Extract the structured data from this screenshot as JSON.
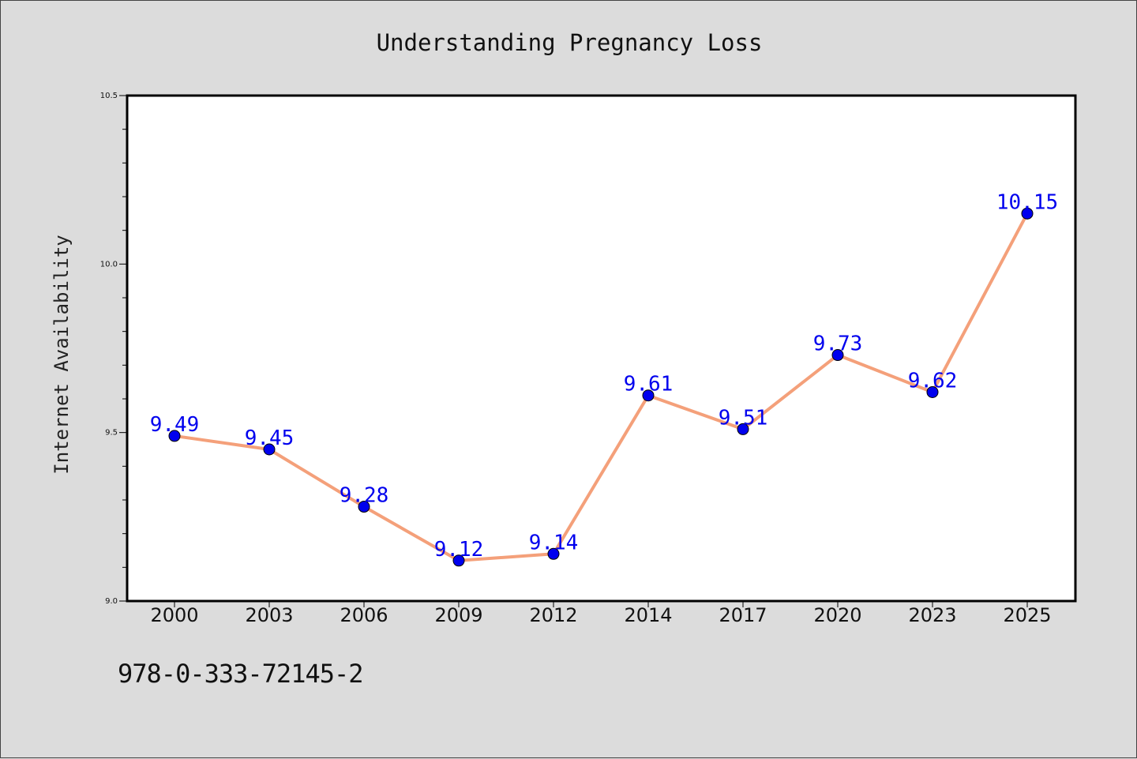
{
  "footer": {
    "code": "978-0-333-72145-2"
  },
  "chart_data": {
    "type": "line",
    "title": "Understanding Pregnancy Loss",
    "xlabel": "",
    "ylabel": "Internet Availability",
    "categories": [
      "2000",
      "2003",
      "2006",
      "2009",
      "2012",
      "2014",
      "2017",
      "2020",
      "2023",
      "2025"
    ],
    "series": [
      {
        "values": [
          9.49,
          9.45,
          9.28,
          9.12,
          9.14,
          9.61,
          9.51,
          9.73,
          9.62,
          10.15
        ],
        "data_labels": [
          "9.49",
          "9.45",
          "9.28",
          "9.12",
          "9.14",
          "9.61",
          "9.51",
          "9.73",
          "9.62",
          "10.15"
        ]
      }
    ],
    "ylim": [
      9.0,
      10.5
    ],
    "yticks": [
      "9.0",
      "9.5",
      "10.0",
      "10.5"
    ],
    "grid": false,
    "colors": {
      "line": "#f4a07a",
      "marker": "#0000ee",
      "label": "#0000ee"
    }
  }
}
